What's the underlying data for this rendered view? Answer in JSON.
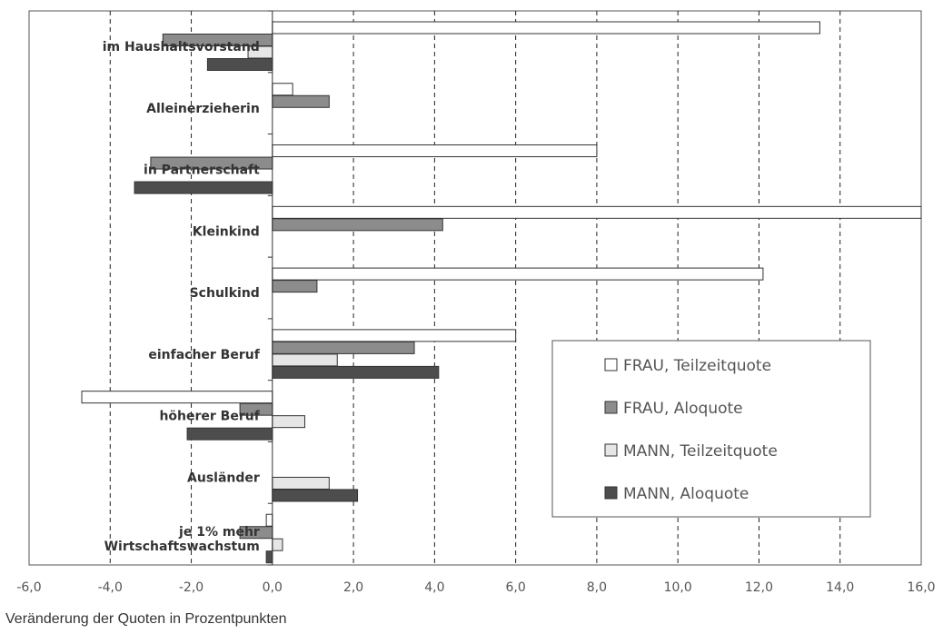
{
  "chart_data": {
    "type": "bar",
    "orientation": "horizontal",
    "xlabel": "Veränderung der Quoten in Prozentpunkten",
    "xlim": [
      -6,
      16
    ],
    "xticks": [
      "-6,0",
      "-4,0",
      "-2,0",
      "0,0",
      "2,0",
      "4,0",
      "6,0",
      "8,0",
      "10,0",
      "12,0",
      "14,0",
      "16,0"
    ],
    "grid": "vertical dashed",
    "legend_position": "right",
    "categories": [
      [
        "im Haushaltsvorstand"
      ],
      [
        "Alleinerzieherin"
      ],
      [
        "in Partnerschaft"
      ],
      [
        "Kleinkind"
      ],
      [
        "Schulkind"
      ],
      [
        "einfacher Beruf"
      ],
      [
        "höherer Beruf"
      ],
      [
        "Ausländer"
      ],
      [
        "je 1% mehr",
        "Wirtschaftswachstum"
      ]
    ],
    "series": [
      {
        "name": "FRAU, Teilzeitquote",
        "color": "#ffffff",
        "values": [
          13.5,
          0.5,
          8.0,
          16.0,
          12.1,
          6.0,
          -4.7,
          null,
          -0.15
        ]
      },
      {
        "name": "FRAU, Aloquote",
        "color": "#8c8c8c",
        "values": [
          -2.7,
          1.4,
          -3.0,
          4.2,
          1.1,
          3.5,
          -0.8,
          null,
          -0.8
        ]
      },
      {
        "name": "MANN, Teilzeitquote",
        "color": "#e6e6e6",
        "values": [
          -0.6,
          null,
          null,
          null,
          null,
          1.6,
          0.8,
          1.4,
          0.25
        ]
      },
      {
        "name": "MANN, Aloquote",
        "color": "#4d4d4d",
        "values": [
          -1.6,
          null,
          -3.4,
          null,
          null,
          4.1,
          -2.1,
          2.1,
          -0.15
        ]
      }
    ]
  }
}
